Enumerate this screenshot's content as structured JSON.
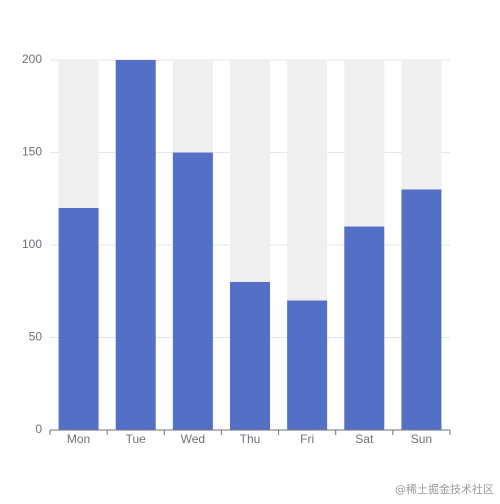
{
  "chart_data": {
    "type": "bar",
    "categories": [
      "Mon",
      "Tue",
      "Wed",
      "Thu",
      "Fri",
      "Sat",
      "Sun"
    ],
    "values": [
      120,
      200,
      150,
      80,
      70,
      110,
      130
    ],
    "color": "#5470c6",
    "background_color": "#efefef",
    "ylim": [
      0,
      200
    ],
    "yticks": [
      0,
      50,
      100,
      150,
      200
    ],
    "grid": true
  },
  "watermark": "@稀土掘金技术社区"
}
